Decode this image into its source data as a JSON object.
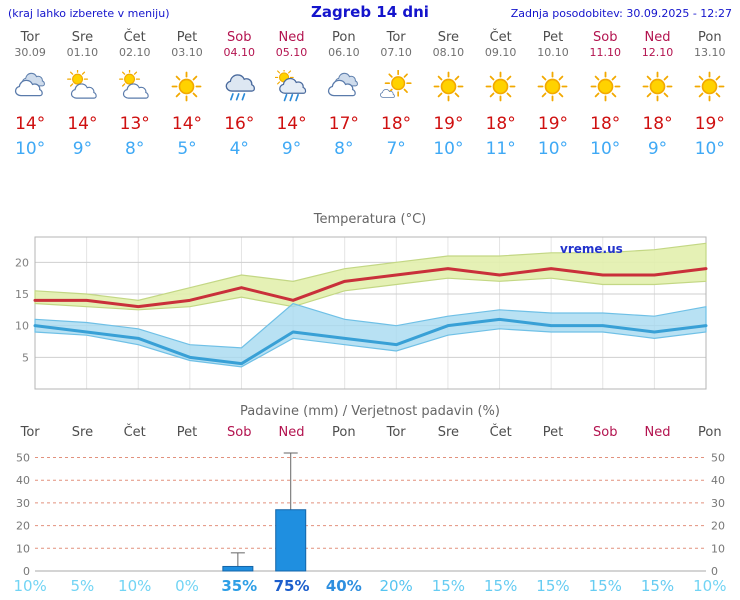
{
  "header": {
    "note": "(kraj lahko izberete v meniju)",
    "title": "Zagreb 14 dni",
    "updated": "Zadnja posodobitev: 30.09.2025 - 12:27"
  },
  "colors": {
    "header_blue": "#1414cc",
    "weekend": "#b3134f",
    "tmax": "#cf1010",
    "tmin": "#3fa9f5",
    "bar": "#1f8fe0",
    "watermark": "#2233cc"
  },
  "forecast": {
    "days": [
      {
        "name": "Tor",
        "date": "30.09",
        "weekend": false,
        "icon": "cloudy",
        "tmax": "14°",
        "tmin": "10°"
      },
      {
        "name": "Sre",
        "date": "01.10",
        "weekend": false,
        "icon": "partly-cloudy",
        "tmax": "14°",
        "tmin": "9°"
      },
      {
        "name": "Čet",
        "date": "02.10",
        "weekend": false,
        "icon": "partly-cloudy",
        "tmax": "13°",
        "tmin": "8°"
      },
      {
        "name": "Pet",
        "date": "03.10",
        "weekend": false,
        "icon": "sunny",
        "tmax": "14°",
        "tmin": "5°"
      },
      {
        "name": "Sob",
        "date": "04.10",
        "weekend": true,
        "icon": "rain",
        "tmax": "16°",
        "tmin": "4°"
      },
      {
        "name": "Ned",
        "date": "05.10",
        "weekend": true,
        "icon": "rain-sun",
        "tmax": "14°",
        "tmin": "9°"
      },
      {
        "name": "Pon",
        "date": "06.10",
        "weekend": false,
        "icon": "cloudy",
        "tmax": "17°",
        "tmin": "8°"
      },
      {
        "name": "Tor",
        "date": "07.10",
        "weekend": false,
        "icon": "mostly-sunny",
        "tmax": "18°",
        "tmin": "7°"
      },
      {
        "name": "Sre",
        "date": "08.10",
        "weekend": false,
        "icon": "sunny",
        "tmax": "19°",
        "tmin": "10°"
      },
      {
        "name": "Čet",
        "date": "09.10",
        "weekend": false,
        "icon": "sunny",
        "tmax": "18°",
        "tmin": "11°"
      },
      {
        "name": "Pet",
        "date": "10.10",
        "weekend": false,
        "icon": "sunny",
        "tmax": "19°",
        "tmin": "10°"
      },
      {
        "name": "Sob",
        "date": "11.10",
        "weekend": true,
        "icon": "sunny",
        "tmax": "18°",
        "tmin": "10°"
      },
      {
        "name": "Ned",
        "date": "12.10",
        "weekend": true,
        "icon": "sunny",
        "tmax": "18°",
        "tmin": "9°"
      },
      {
        "name": "Pon",
        "date": "13.10",
        "weekend": false,
        "icon": "sunny",
        "tmax": "19°",
        "tmin": "10°"
      }
    ]
  },
  "chart_data": [
    {
      "type": "line",
      "title": "Temperatura (°C)",
      "watermark": "vreme.us",
      "categories": [
        "Tor",
        "Sre",
        "Čet",
        "Pet",
        "Sob",
        "Ned",
        "Pon",
        "Tor",
        "Sre",
        "Čet",
        "Pet",
        "Sob",
        "Ned",
        "Pon"
      ],
      "ylim": [
        0,
        24
      ],
      "yticks": [
        5,
        10,
        15,
        20
      ],
      "series": [
        {
          "name": "max-temperature",
          "color": "#c9303a",
          "values": [
            14,
            14,
            13,
            14,
            16,
            14,
            17,
            18,
            19,
            18,
            19,
            18,
            18,
            19
          ]
        },
        {
          "name": "min-temperature",
          "color": "#38a0d6",
          "values": [
            10,
            9,
            8,
            5,
            4,
            9,
            8,
            7,
            10,
            11,
            10,
            10,
            9,
            10
          ]
        }
      ],
      "bands": [
        {
          "name": "max-range",
          "fill": "#e2efad",
          "edge": "#c3d784",
          "upper": [
            15.5,
            15,
            14,
            16,
            18,
            17,
            19,
            20,
            21,
            21,
            21.5,
            21.5,
            22,
            23
          ],
          "lower": [
            13.5,
            13,
            12.5,
            13,
            14.5,
            13,
            15.5,
            16.5,
            17.5,
            17,
            17.5,
            16.5,
            16.5,
            17
          ]
        },
        {
          "name": "min-range",
          "fill": "#a6d9f0",
          "edge": "#6fc0e6",
          "upper": [
            11,
            10.5,
            9.5,
            7,
            6.5,
            13.5,
            11,
            10,
            11.5,
            12.5,
            12,
            12,
            11.5,
            13
          ],
          "lower": [
            9,
            8.5,
            7,
            4.5,
            3.5,
            8,
            7,
            6,
            8.5,
            9.5,
            9,
            9,
            8,
            9
          ]
        }
      ]
    },
    {
      "type": "bar",
      "title": "Padavine (mm) / Verjetnost padavin (%)",
      "categories": [
        "Tor",
        "Sre",
        "Čet",
        "Pet",
        "Sob",
        "Ned",
        "Pon",
        "Tor",
        "Sre",
        "Čet",
        "Pet",
        "Sob",
        "Ned",
        "Pon"
      ],
      "ylim": [
        0,
        52
      ],
      "yticks": [
        0,
        10,
        20,
        30,
        40,
        50
      ],
      "bar_color": "#1f8fe0",
      "values": [
        0,
        0,
        0,
        0,
        2,
        27,
        0,
        0,
        0,
        0,
        0,
        0,
        0,
        0
      ],
      "whisker_hi": [
        null,
        null,
        null,
        null,
        8,
        52,
        null,
        null,
        null,
        null,
        null,
        null,
        null,
        null
      ],
      "probabilities": [
        "10%",
        "5%",
        "10%",
        "0%",
        "35%",
        "75%",
        "40%",
        "20%",
        "15%",
        "15%",
        "15%",
        "15%",
        "15%",
        "10%"
      ],
      "prob_colors": [
        "#72d4f4",
        "#72d4f4",
        "#72d4f4",
        "#72d4f4",
        "#2e9fe6",
        "#1c5ecc",
        "#2e8fdf",
        "#55c4f0",
        "#66ccf2",
        "#66ccf2",
        "#66ccf2",
        "#66ccf2",
        "#66ccf2",
        "#72d4f4"
      ],
      "prob_bold": [
        false,
        false,
        false,
        false,
        true,
        true,
        true,
        false,
        false,
        false,
        false,
        false,
        false,
        false
      ]
    }
  ]
}
